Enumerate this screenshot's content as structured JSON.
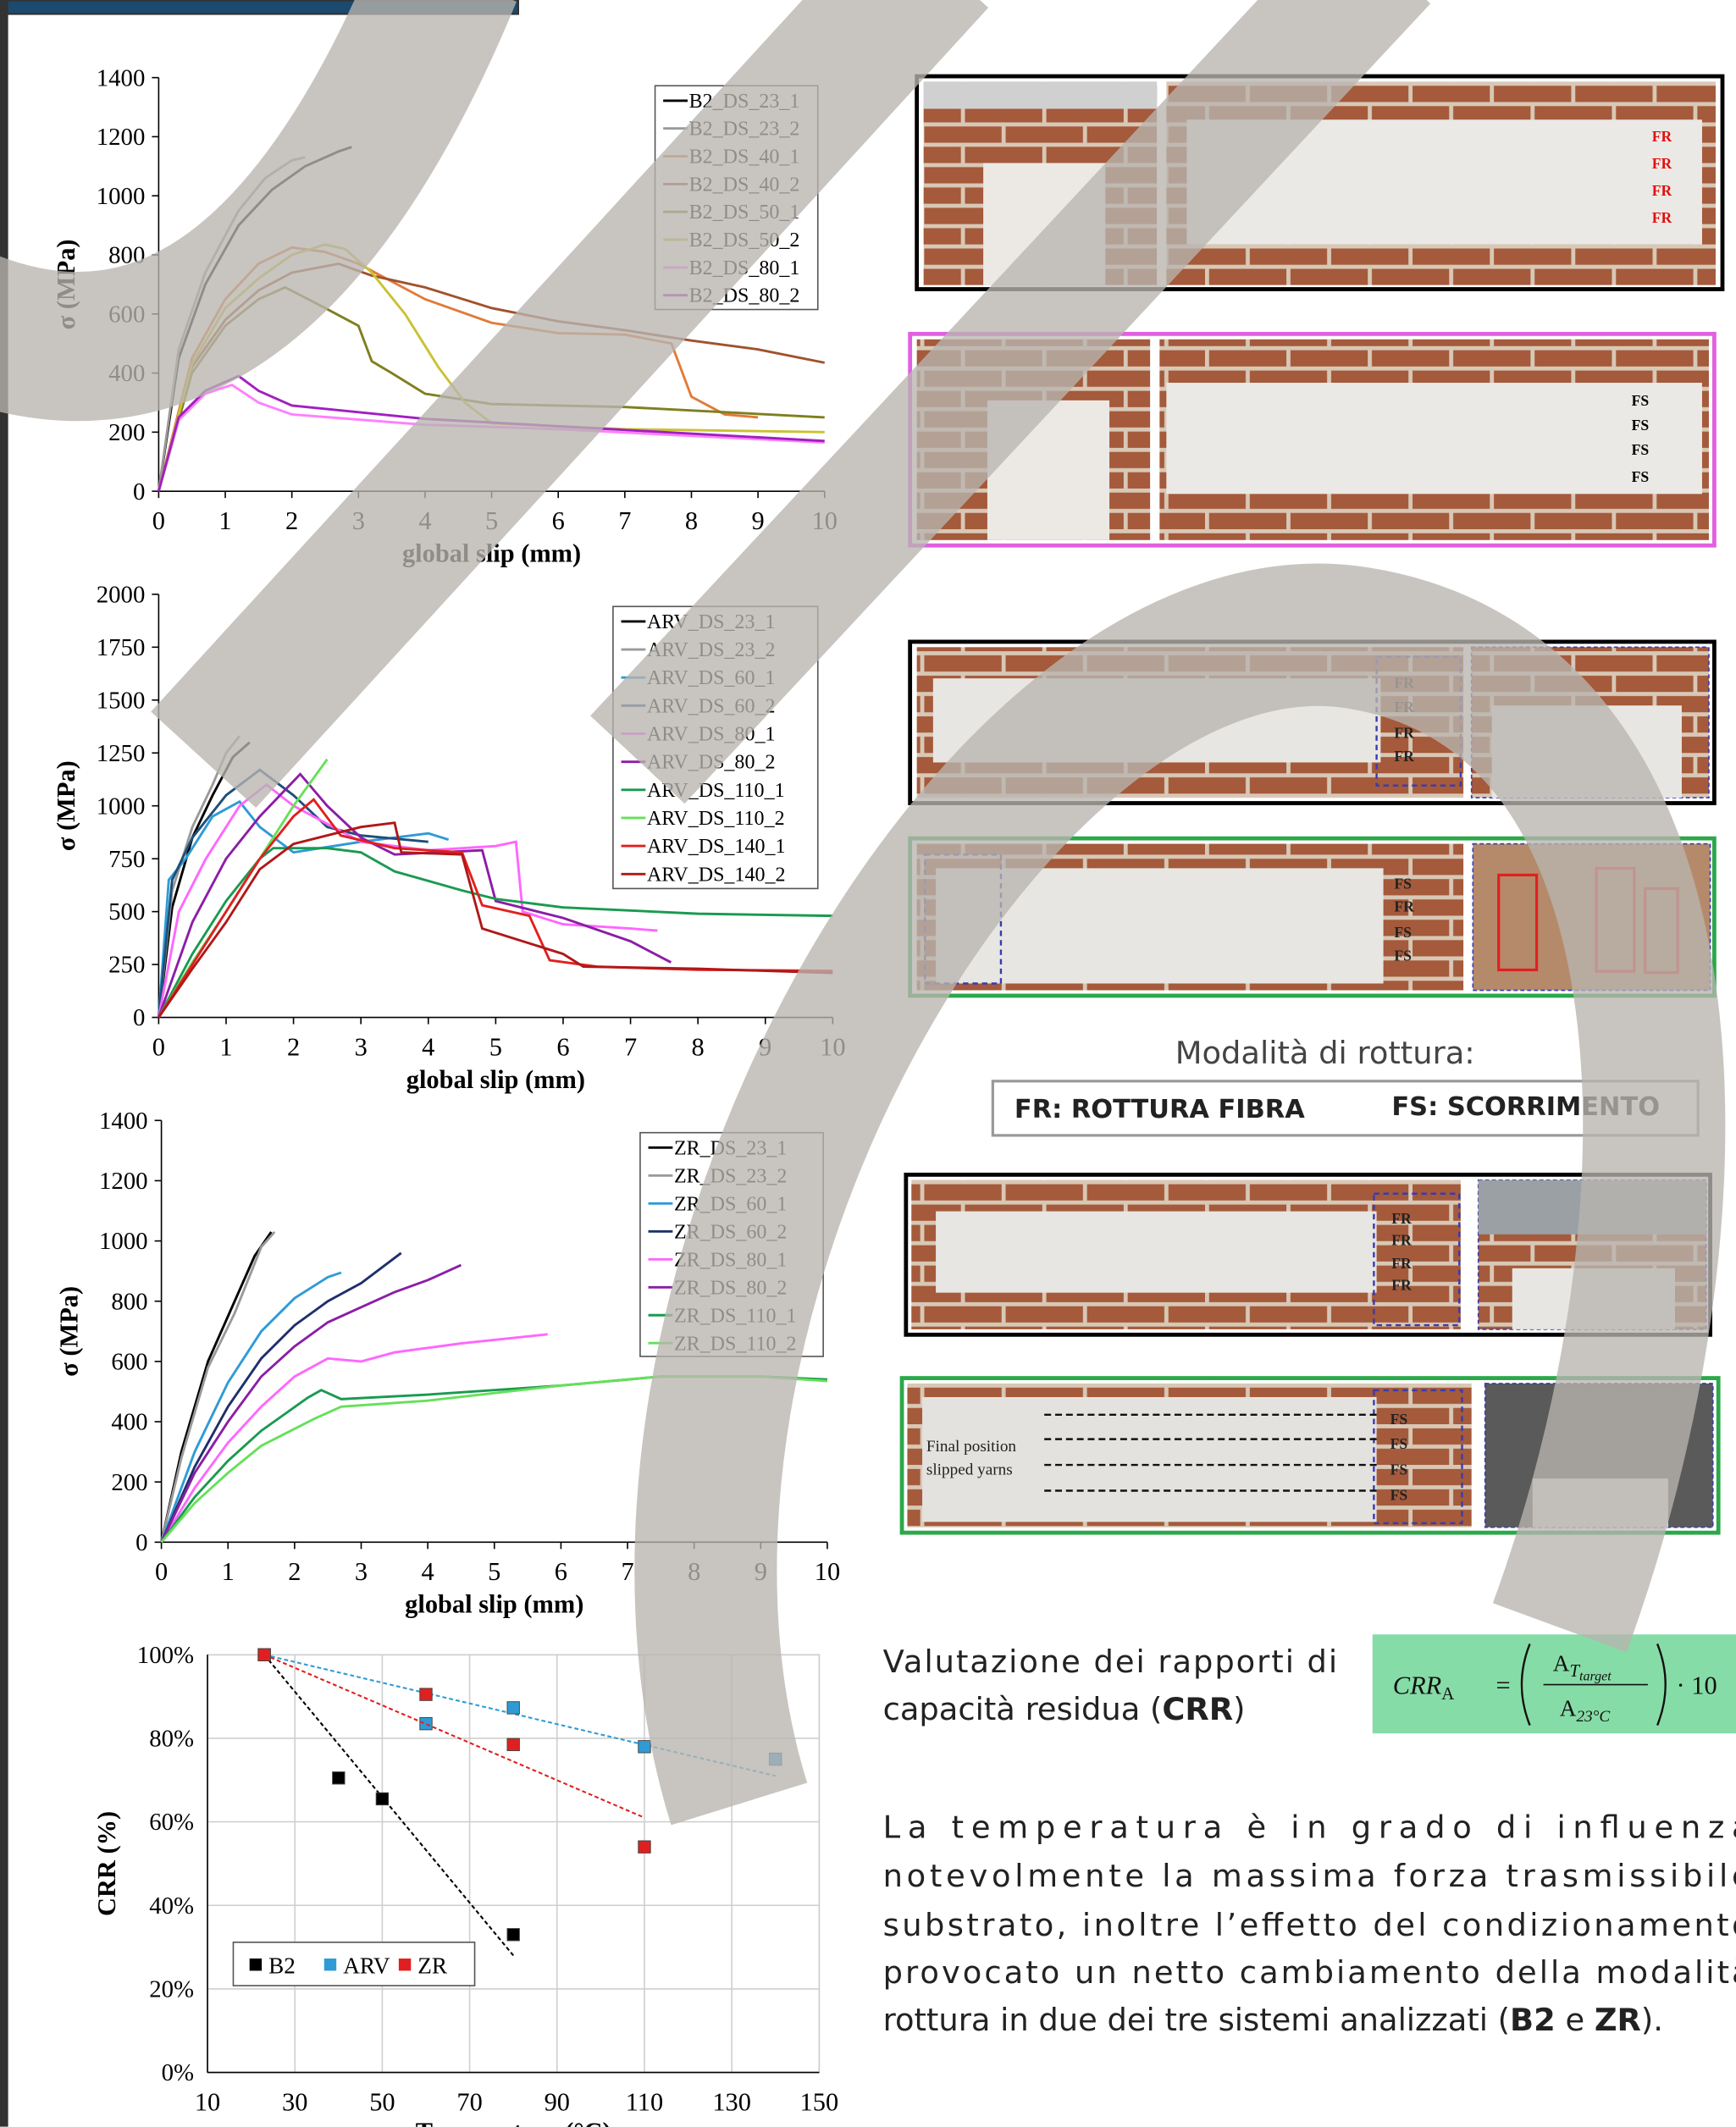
{
  "chart_data": [
    {
      "type": "line",
      "ylabel": "σ (MPa)",
      "xlabel": "global slip (mm)",
      "xlim": [
        0,
        10
      ],
      "ylim": [
        0,
        1400
      ],
      "xticks": [
        0,
        1,
        2,
        3,
        4,
        5,
        6,
        7,
        8,
        9,
        10
      ],
      "yticks": [
        0,
        200,
        400,
        600,
        800,
        1000,
        1200,
        1400
      ],
      "grid": false,
      "legend": "upper right",
      "series": [
        {
          "name": "B2_DS_23_1",
          "color": "#000000",
          "x": [
            0,
            0.3,
            0.7,
            1.2,
            1.7,
            2.2,
            2.7,
            2.9
          ],
          "values": [
            0,
            450,
            700,
            900,
            1020,
            1100,
            1150,
            1165
          ]
        },
        {
          "name": "B2_DS_23_2",
          "color": "#9a9a9a",
          "x": [
            0,
            0.3,
            0.7,
            1.2,
            1.6,
            2.0,
            2.2
          ],
          "values": [
            0,
            480,
            740,
            950,
            1060,
            1120,
            1130
          ]
        },
        {
          "name": "B2_DS_40_1",
          "color": "#e07b39",
          "x": [
            0,
            0.5,
            1,
            1.5,
            2,
            2.5,
            3,
            4,
            5,
            6,
            7,
            7.7,
            8,
            8.5,
            9
          ],
          "values": [
            0,
            450,
            650,
            770,
            825,
            810,
            770,
            650,
            570,
            535,
            530,
            500,
            320,
            260,
            250
          ]
        },
        {
          "name": "B2_DS_40_2",
          "color": "#a0522d",
          "x": [
            0,
            0.5,
            1,
            1.5,
            2,
            2.7,
            3.2,
            4,
            5,
            6,
            7,
            8,
            9,
            10
          ],
          "values": [
            0,
            420,
            580,
            680,
            740,
            770,
            730,
            690,
            620,
            575,
            545,
            510,
            480,
            435
          ]
        },
        {
          "name": "B2_DS_50_1",
          "color": "#7f7f1f",
          "x": [
            0,
            0.5,
            1,
            1.5,
            1.9,
            2.5,
            3,
            3.2,
            3.5,
            4,
            5,
            7,
            10
          ],
          "values": [
            0,
            400,
            560,
            650,
            690,
            620,
            560,
            440,
            400,
            330,
            295,
            285,
            250
          ]
        },
        {
          "name": "B2_DS_50_2",
          "color": "#c9c232",
          "x": [
            0,
            0.5,
            1,
            1.5,
            2,
            2.5,
            2.8,
            3.2,
            3.7,
            4.2,
            4.6,
            5,
            7,
            10
          ],
          "values": [
            0,
            430,
            620,
            720,
            800,
            835,
            820,
            740,
            600,
            420,
            300,
            230,
            210,
            200
          ]
        },
        {
          "name": "B2_DS_80_1",
          "color": "#ff7fff",
          "x": [
            0,
            0.3,
            0.7,
            1.1,
            1.5,
            2,
            4,
            6,
            10
          ],
          "values": [
            0,
            240,
            330,
            360,
            300,
            260,
            225,
            210,
            165
          ]
        },
        {
          "name": "B2_DS_80_2",
          "color": "#a020c0",
          "x": [
            0,
            0.3,
            0.7,
            1.2,
            1.5,
            2,
            4,
            6,
            10
          ],
          "values": [
            0,
            250,
            340,
            390,
            340,
            290,
            245,
            220,
            170
          ]
        }
      ]
    },
    {
      "type": "line",
      "ylabel": "σ (MPa)",
      "xlabel": "global slip (mm)",
      "xlim": [
        0,
        10
      ],
      "ylim": [
        0,
        2000
      ],
      "xticks": [
        0,
        1,
        2,
        3,
        4,
        5,
        6,
        7,
        8,
        9,
        10
      ],
      "yticks": [
        0,
        250,
        500,
        750,
        1000,
        1250,
        1500,
        1750,
        2000
      ],
      "grid": false,
      "legend": "upper right",
      "series": [
        {
          "name": "ARV_DS_23_1",
          "color": "#000000",
          "x": [
            0,
            0.2,
            0.5,
            0.8,
            1.1,
            1.35
          ],
          "values": [
            0,
            520,
            850,
            1050,
            1230,
            1300
          ]
        },
        {
          "name": "ARV_DS_23_2",
          "color": "#9a9a9a",
          "x": [
            0,
            0.2,
            0.5,
            0.8,
            1.0,
            1.2
          ],
          "values": [
            0,
            600,
            900,
            1100,
            1250,
            1330
          ]
        },
        {
          "name": "ARV_DS_60_1",
          "color": "#2e9bd6",
          "x": [
            0,
            0.15,
            0.4,
            0.8,
            1.2,
            1.5,
            2,
            3,
            4,
            4.3
          ],
          "values": [
            0,
            650,
            750,
            950,
            1020,
            900,
            780,
            830,
            870,
            840
          ]
        },
        {
          "name": "ARV_DS_60_2",
          "color": "#1f4e79",
          "x": [
            0,
            0.2,
            0.5,
            1,
            1.5,
            2,
            2.5,
            3,
            4
          ],
          "values": [
            0,
            650,
            850,
            1050,
            1170,
            1050,
            900,
            860,
            830
          ]
        },
        {
          "name": "ARV_DS_80_1",
          "color": "#ff66ff",
          "x": [
            0,
            0.3,
            0.7,
            1.2,
            1.6,
            2,
            3,
            4,
            5,
            5.3,
            5.4,
            6,
            7,
            7.4
          ],
          "values": [
            0,
            500,
            750,
            1000,
            1100,
            1000,
            830,
            790,
            810,
            830,
            500,
            440,
            420,
            410
          ]
        },
        {
          "name": "ARV_DS_80_2",
          "color": "#8b1ea6",
          "x": [
            0,
            0.5,
            1,
            1.5,
            2.1,
            2.5,
            3,
            3.5,
            4.8,
            5,
            6,
            7,
            7.6
          ],
          "values": [
            0,
            450,
            750,
            950,
            1150,
            1000,
            850,
            770,
            790,
            550,
            470,
            360,
            260
          ]
        },
        {
          "name": "ARV_DS_110_1",
          "color": "#1a9a50",
          "x": [
            0,
            0.5,
            1,
            1.5,
            1.7,
            2.5,
            3,
            3.5,
            4.5,
            5,
            6,
            8,
            10
          ],
          "values": [
            0,
            300,
            550,
            750,
            800,
            800,
            780,
            690,
            600,
            560,
            520,
            490,
            480
          ]
        },
        {
          "name": "ARV_DS_110_2",
          "color": "#66e05a",
          "x": [
            0,
            0.5,
            1,
            1.5,
            2,
            2.5
          ],
          "values": [
            0,
            260,
            500,
            750,
            1000,
            1220
          ]
        },
        {
          "name": "ARV_DS_140_1",
          "color": "#e02020",
          "x": [
            0,
            0.5,
            1,
            1.5,
            2,
            2.3,
            2.7,
            3.5,
            4.5,
            4.8,
            5.5,
            5.8,
            6.5,
            8,
            10
          ],
          "values": [
            0,
            250,
            500,
            750,
            950,
            1030,
            860,
            800,
            780,
            530,
            480,
            270,
            240,
            225,
            220
          ]
        },
        {
          "name": "ARV_DS_140_2",
          "color": "#b01818",
          "x": [
            0,
            0.5,
            1,
            1.5,
            2,
            3,
            3.5,
            3.6,
            4.5,
            4.8,
            6,
            6.3,
            8,
            10
          ],
          "values": [
            0,
            230,
            450,
            700,
            820,
            900,
            920,
            780,
            770,
            420,
            300,
            240,
            230,
            210
          ]
        }
      ]
    },
    {
      "type": "line",
      "ylabel": "σ (MPa)",
      "xlabel": "global slip (mm)",
      "xlim": [
        0,
        10
      ],
      "ylim": [
        0,
        1400
      ],
      "xticks": [
        0,
        1,
        2,
        3,
        4,
        5,
        6,
        7,
        8,
        9,
        10
      ],
      "yticks": [
        0,
        200,
        400,
        600,
        800,
        1000,
        1200,
        1400
      ],
      "grid": false,
      "legend": "upper right",
      "series": [
        {
          "name": "ZR_DS_23_1",
          "color": "#000000",
          "x": [
            0,
            0.3,
            0.7,
            1.1,
            1.4,
            1.65
          ],
          "values": [
            0,
            300,
            600,
            800,
            950,
            1030
          ]
        },
        {
          "name": "ZR_DS_23_2",
          "color": "#9a9a9a",
          "x": [
            0,
            0.3,
            0.7,
            1.1,
            1.5,
            1.7
          ],
          "values": [
            0,
            280,
            580,
            760,
            980,
            1030
          ]
        },
        {
          "name": "ZR_DS_60_1",
          "color": "#2e9bd6",
          "x": [
            0,
            0.5,
            1,
            1.5,
            2,
            2.5,
            2.7
          ],
          "values": [
            0,
            300,
            530,
            700,
            810,
            880,
            895
          ]
        },
        {
          "name": "ZR_DS_60_2",
          "color": "#1f2f6b",
          "x": [
            0,
            0.5,
            1,
            1.5,
            2,
            2.5,
            3,
            3.6
          ],
          "values": [
            0,
            250,
            450,
            610,
            720,
            800,
            860,
            960
          ]
        },
        {
          "name": "ZR_DS_80_1",
          "color": "#ff66ff",
          "x": [
            0,
            0.5,
            1,
            1.5,
            2,
            2.5,
            3,
            3.5,
            4.5,
            5.8
          ],
          "values": [
            0,
            180,
            330,
            450,
            550,
            610,
            600,
            630,
            660,
            690
          ]
        },
        {
          "name": "ZR_DS_80_2",
          "color": "#8b1ea6",
          "x": [
            0,
            0.5,
            1,
            1.5,
            2,
            2.5,
            3,
            3.5,
            4,
            4.5
          ],
          "values": [
            0,
            230,
            400,
            550,
            650,
            730,
            780,
            830,
            870,
            920
          ]
        },
        {
          "name": "ZR_DS_110_1",
          "color": "#1a9a50",
          "x": [
            0,
            0.5,
            1,
            1.5,
            2.2,
            2.4,
            2.7,
            4,
            6,
            7.5,
            9,
            10
          ],
          "values": [
            0,
            150,
            270,
            370,
            480,
            505,
            475,
            490,
            520,
            550,
            550,
            540
          ]
        },
        {
          "name": "ZR_DS_110_2",
          "color": "#66e05a",
          "x": [
            0,
            0.5,
            1,
            1.5,
            2.3,
            2.7,
            4,
            6,
            7.5,
            9,
            10
          ],
          "values": [
            0,
            130,
            230,
            320,
            410,
            450,
            470,
            520,
            550,
            550,
            535
          ]
        }
      ]
    },
    {
      "type": "scatter",
      "ylabel": "CRR (%)",
      "xlabel": "Temperature (°C)",
      "xlim": [
        10,
        150
      ],
      "ylim": [
        0,
        100
      ],
      "xticks": [
        10,
        30,
        50,
        70,
        90,
        110,
        130,
        150
      ],
      "yticks": [
        {
          "value": 0,
          "label": "0%"
        },
        {
          "value": 20,
          "label": "20%"
        },
        {
          "value": 40,
          "label": "40%"
        },
        {
          "value": 60,
          "label": "60%"
        },
        {
          "value": 80,
          "label": "80%"
        },
        {
          "value": 100,
          "label": "100%"
        }
      ],
      "grid": true,
      "legend": "lower left",
      "series": [
        {
          "name": "B2",
          "color": "#000000",
          "x": [
            23,
            40,
            50,
            80
          ],
          "values": [
            100,
            70.5,
            65.5,
            33
          ],
          "trend_x": [
            23,
            80
          ],
          "trend_y": [
            100,
            28
          ]
        },
        {
          "name": "ARV",
          "color": "#2e9bd6",
          "x": [
            23,
            60,
            80,
            110,
            140
          ],
          "values": [
            100,
            83.5,
            87.3,
            78,
            75
          ],
          "trend_x": [
            23,
            140
          ],
          "trend_y": [
            100,
            71
          ]
        },
        {
          "name": "ZR",
          "color": "#e02020",
          "x": [
            23,
            60,
            80,
            110
          ],
          "values": [
            100,
            90.5,
            78.5,
            54
          ],
          "trend_x": [
            23,
            110
          ],
          "trend_y": [
            100,
            61
          ]
        }
      ]
    }
  ],
  "photos": [
    {
      "labels": [
        "FR",
        "FR",
        "FR",
        "FR"
      ]
    },
    {
      "labels": [
        "FS",
        "FS",
        "FS",
        "FS"
      ]
    },
    {
      "labels": [
        "FR",
        "FR",
        "FR",
        "FR"
      ]
    },
    {
      "labels": [
        "FS",
        "FR",
        "FS",
        "FS"
      ]
    },
    {
      "labels": [
        "FR",
        "FR",
        "FR",
        "FR"
      ]
    },
    {
      "labels": [
        "FS",
        "FS",
        "FS",
        "FS"
      ],
      "annotations": [
        "Final position",
        "slipped yarns"
      ]
    }
  ],
  "failure_modes": {
    "title": "Modalità di rottura:",
    "items": [
      "FR: ROTTURA FIBRA",
      "FS: SCORRIMENTO"
    ]
  },
  "crr": {
    "line1": "Valutazione dei rapporti di",
    "line2": "capacità residua (",
    "bold": "CRR",
    "close": ")",
    "formula": {
      "lhs": "CRR",
      "lhs_sub": "A",
      "equals": "=",
      "num": "A",
      "num_sub": "T",
      "num_subsub": "target",
      "den": "A",
      "den_sub": "23°C",
      "rhs": "· 10"
    }
  },
  "conclusion": {
    "lines": [
      "La temperatura è in grado di influenza",
      "notevolmente la massima forza trasmissibile",
      "substrato, inoltre l’effetto del condizionamento",
      "provocato un netto cambiamento della modalità"
    ],
    "last": "rottura in due dei tre sistemi analizzati (",
    "b1": "B2",
    "mid": " e ",
    "b2": "ZR",
    "end": ")."
  }
}
